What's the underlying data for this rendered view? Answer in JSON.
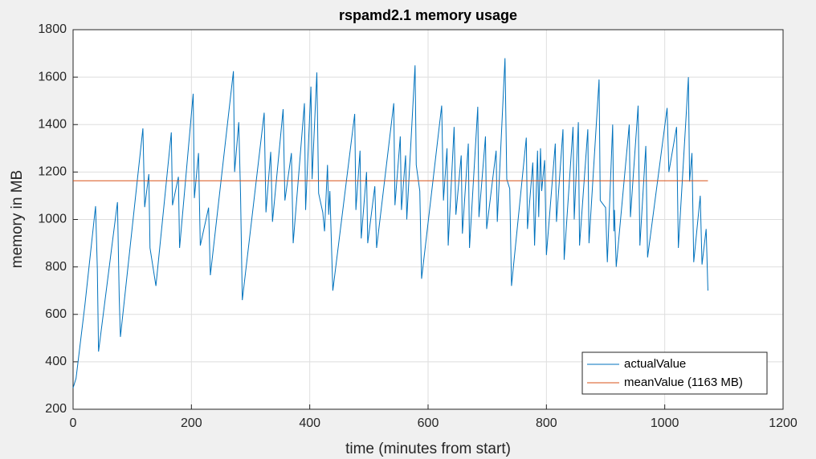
{
  "chart_data": {
    "type": "line",
    "title": "rspamd2.1 memory usage",
    "xlabel": "time (minutes from start)",
    "ylabel": "memory in MB",
    "xlim": [
      0,
      1200
    ],
    "xticks": [
      0,
      200,
      400,
      600,
      800,
      1000,
      1200
    ],
    "ylim": [
      200,
      1800
    ],
    "yticks": [
      200,
      400,
      600,
      800,
      1000,
      1200,
      1400,
      1600,
      1800
    ],
    "grid": true,
    "legend": "lower-right",
    "series": [
      {
        "name": "actualValue",
        "color": "#0072bd",
        "x": [
          0,
          5,
          20,
          38,
          41,
          43,
          75,
          78,
          80,
          118,
          121,
          128,
          130,
          140,
          166,
          168,
          178,
          180,
          203,
          205,
          212,
          215,
          229,
          232,
          271,
          273,
          280,
          283,
          286,
          323,
          326,
          334,
          337,
          355,
          358,
          369,
          372,
          391,
          393,
          402,
          404,
          412,
          415,
          422,
          425,
          430,
          432,
          434,
          439,
          476,
          478,
          485,
          487,
          496,
          498,
          510,
          513,
          542,
          544,
          553,
          555,
          562,
          564,
          578,
          580,
          586,
          589,
          623,
          626,
          632,
          634,
          644,
          647,
          656,
          658,
          668,
          670,
          684,
          686,
          697,
          699,
          715,
          717,
          730,
          733,
          738,
          741,
          766,
          768,
          777,
          780,
          785,
          787,
          790,
          792,
          797,
          800,
          815,
          817,
          828,
          830,
          845,
          847,
          854,
          856,
          870,
          872,
          889,
          891,
          900,
          903,
          912,
          914,
          915,
          918,
          940,
          942,
          955,
          958,
          968,
          971,
          1004,
          1007,
          1020,
          1023,
          1040,
          1042,
          1046,
          1049,
          1060,
          1063,
          1070,
          1073
        ],
        "values": [
          290,
          330,
          640,
          1056,
          790,
          443,
          1073,
          670,
          505,
          1384,
          1052,
          1191,
          880,
          720,
          1367,
          1060,
          1180,
          880,
          1530,
          1090,
          1280,
          890,
          1050,
          765,
          1625,
          1200,
          1410,
          1110,
          660,
          1450,
          1030,
          1285,
          990,
          1465,
          1080,
          1280,
          900,
          1490,
          1040,
          1560,
          1170,
          1620,
          1110,
          1030,
          950,
          1230,
          1020,
          1120,
          700,
          1445,
          1040,
          1290,
          920,
          1200,
          900,
          1140,
          880,
          1490,
          1060,
          1350,
          1040,
          1270,
          1000,
          1650,
          1230,
          1120,
          750,
          1480,
          1080,
          1300,
          890,
          1390,
          1020,
          1270,
          940,
          1320,
          880,
          1475,
          1010,
          1350,
          960,
          1290,
          990,
          1680,
          1170,
          1130,
          720,
          1345,
          960,
          1240,
          890,
          1290,
          1010,
          1300,
          1120,
          1250,
          850,
          1320,
          990,
          1380,
          830,
          1390,
          1000,
          1410,
          890,
          1380,
          900,
          1590,
          1080,
          1050,
          820,
          1400,
          950,
          1040,
          800,
          1400,
          1010,
          1480,
          890,
          1310,
          840,
          1470,
          1200,
          1390,
          880,
          1600,
          1160,
          1280,
          820,
          1100,
          810,
          960,
          700
        ]
      },
      {
        "name": "meanValue (1163 MB)",
        "color": "#d95319",
        "x": [
          0,
          1073
        ],
        "values": [
          1163,
          1163
        ]
      }
    ]
  }
}
